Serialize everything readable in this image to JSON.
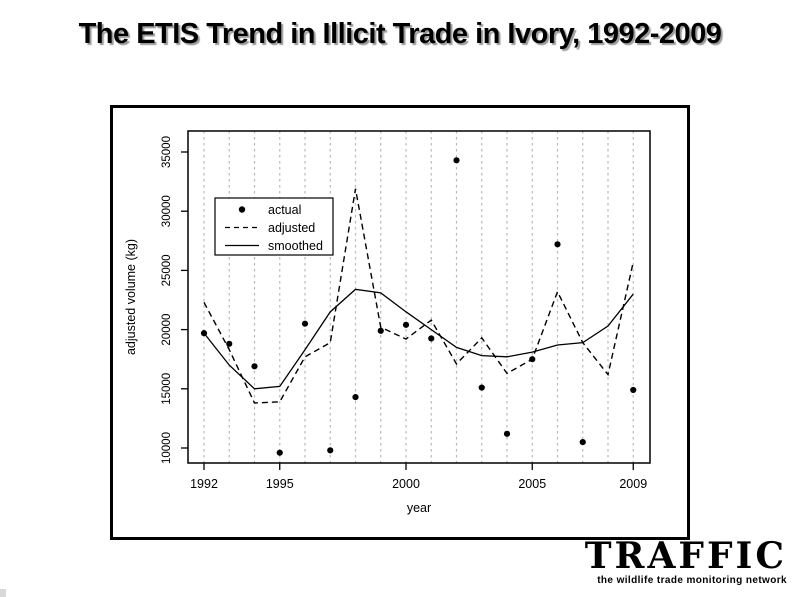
{
  "slide": {
    "title": "The ETIS Trend in Illicit Trade in Ivory, 1992-2009"
  },
  "logo": {
    "brand": "TRAFFIC",
    "tagline": "the wildlife trade monitoring network"
  },
  "chart_data": {
    "type": "line",
    "title": "",
    "xlabel": "year",
    "ylabel": "adjusted volume (kg)",
    "x": [
      1992,
      1993,
      1994,
      1995,
      1996,
      1997,
      1998,
      1999,
      2000,
      2001,
      2002,
      2003,
      2004,
      2005,
      2006,
      2007,
      2008,
      2009
    ],
    "xticks": [
      1992,
      1995,
      2000,
      2005,
      2009
    ],
    "yticks": [
      10000,
      15000,
      20000,
      25000,
      30000,
      35000
    ],
    "ylim": [
      8700,
      36900
    ],
    "grid": "vertical-dashed-every-year",
    "legend": {
      "position": "upper-left-inside",
      "entries": [
        "actual",
        "adjusted",
        "smoothed"
      ]
    },
    "series": [
      {
        "name": "actual",
        "style": "points",
        "marker": "filled-circle",
        "values": [
          19700,
          18800,
          16900,
          9600,
          20500,
          9800,
          14300,
          19900,
          20400,
          19250,
          34300,
          15100,
          11200,
          17500,
          27200,
          10500,
          null,
          14900
        ]
      },
      {
        "name": "adjusted",
        "style": "dashed-line",
        "values": [
          22300,
          18300,
          13800,
          13900,
          17700,
          18900,
          31900,
          20200,
          19200,
          20800,
          17100,
          19300,
          16300,
          17500,
          23200,
          18900,
          16200,
          25700
        ]
      },
      {
        "name": "smoothed",
        "style": "solid-line",
        "values": [
          19700,
          17000,
          15000,
          15200,
          18300,
          21500,
          23400,
          23100,
          21500,
          20000,
          18500,
          17800,
          17700,
          18100,
          18700,
          18900,
          20300,
          23000
        ]
      }
    ],
    "colors": {
      "line": "#000000",
      "grid": "#b8b8b8",
      "axis": "#000000",
      "background": "#ffffff"
    }
  }
}
